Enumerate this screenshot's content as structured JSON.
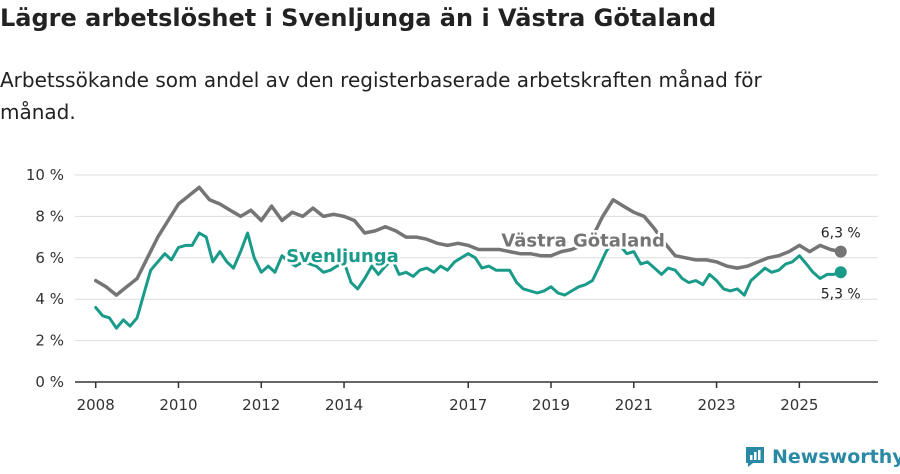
{
  "title": "Lägre arbetslöshet i Svenljunga än i Västra Götaland",
  "subtitle": "Arbetssökande som andel av den registerbaserade arbetskraften månad för månad.",
  "brand": "Newsworthy",
  "colors": {
    "svenljunga": "#1a9b8a",
    "vastra_gotaland": "#757575",
    "grid": "#dddddd",
    "axis": "#333333",
    "brand": "#2a8aa5"
  },
  "chart_data": {
    "type": "line",
    "title": "Lägre arbetslöshet i Svenljunga än i Västra Götaland",
    "xlabel": "",
    "ylabel": "",
    "ylim": [
      0,
      10
    ],
    "xlim": [
      2007.5,
      2026.9
    ],
    "yticks": [
      0,
      2,
      4,
      6,
      8,
      10
    ],
    "ytick_labels": [
      "0 %",
      "2 %",
      "4 %",
      "6 %",
      "8 %",
      "10 %"
    ],
    "xticks": [
      2008,
      2010,
      2012,
      2014,
      2017,
      2019,
      2021,
      2023,
      2025
    ],
    "xtick_labels": [
      "2008",
      "2010",
      "2012",
      "2014",
      "2017",
      "2019",
      "2021",
      "2023",
      "2025"
    ],
    "grid": true,
    "series": [
      {
        "name": "Västra Götaland",
        "label_position": [
          2017.8,
          6.55
        ],
        "end_label": "6,3 %",
        "points": [
          [
            2008.0,
            4.9
          ],
          [
            2008.25,
            4.6
          ],
          [
            2008.5,
            4.2
          ],
          [
            2008.75,
            4.6
          ],
          [
            2009.0,
            5.0
          ],
          [
            2009.25,
            6.0
          ],
          [
            2009.5,
            7.0
          ],
          [
            2009.75,
            7.8
          ],
          [
            2010.0,
            8.6
          ],
          [
            2010.25,
            9.0
          ],
          [
            2010.5,
            9.4
          ],
          [
            2010.75,
            8.8
          ],
          [
            2011.0,
            8.6
          ],
          [
            2011.25,
            8.3
          ],
          [
            2011.5,
            8.0
          ],
          [
            2011.75,
            8.3
          ],
          [
            2012.0,
            7.8
          ],
          [
            2012.25,
            8.5
          ],
          [
            2012.5,
            7.8
          ],
          [
            2012.75,
            8.2
          ],
          [
            2013.0,
            8.0
          ],
          [
            2013.25,
            8.4
          ],
          [
            2013.5,
            8.0
          ],
          [
            2013.75,
            8.1
          ],
          [
            2014.0,
            8.0
          ],
          [
            2014.25,
            7.8
          ],
          [
            2014.5,
            7.2
          ],
          [
            2014.75,
            7.3
          ],
          [
            2015.0,
            7.5
          ],
          [
            2015.25,
            7.3
          ],
          [
            2015.5,
            7.0
          ],
          [
            2015.75,
            7.0
          ],
          [
            2016.0,
            6.9
          ],
          [
            2016.25,
            6.7
          ],
          [
            2016.5,
            6.6
          ],
          [
            2016.75,
            6.7
          ],
          [
            2017.0,
            6.6
          ],
          [
            2017.25,
            6.4
          ],
          [
            2017.5,
            6.4
          ],
          [
            2017.75,
            6.4
          ],
          [
            2018.0,
            6.3
          ],
          [
            2018.25,
            6.2
          ],
          [
            2018.5,
            6.2
          ],
          [
            2018.75,
            6.1
          ],
          [
            2019.0,
            6.1
          ],
          [
            2019.25,
            6.3
          ],
          [
            2019.5,
            6.4
          ],
          [
            2019.75,
            6.6
          ],
          [
            2020.0,
            7.0
          ],
          [
            2020.25,
            8.0
          ],
          [
            2020.5,
            8.8
          ],
          [
            2020.75,
            8.5
          ],
          [
            2021.0,
            8.2
          ],
          [
            2021.25,
            8.0
          ],
          [
            2021.5,
            7.4
          ],
          [
            2021.75,
            6.7
          ],
          [
            2022.0,
            6.1
          ],
          [
            2022.25,
            6.0
          ],
          [
            2022.5,
            5.9
          ],
          [
            2022.75,
            5.9
          ],
          [
            2023.0,
            5.8
          ],
          [
            2023.25,
            5.6
          ],
          [
            2023.5,
            5.5
          ],
          [
            2023.75,
            5.6
          ],
          [
            2024.0,
            5.8
          ],
          [
            2024.25,
            6.0
          ],
          [
            2024.5,
            6.1
          ],
          [
            2024.75,
            6.3
          ],
          [
            2025.0,
            6.6
          ],
          [
            2025.25,
            6.3
          ],
          [
            2025.5,
            6.6
          ],
          [
            2025.75,
            6.4
          ],
          [
            2026.0,
            6.3
          ]
        ]
      },
      {
        "name": "Svenljunga",
        "label_position": [
          2012.6,
          5.8
        ],
        "end_label": "5,3 %",
        "points": [
          [
            2008.0,
            3.6
          ],
          [
            2008.17,
            3.2
          ],
          [
            2008.33,
            3.1
          ],
          [
            2008.5,
            2.6
          ],
          [
            2008.67,
            3.0
          ],
          [
            2008.83,
            2.7
          ],
          [
            2009.0,
            3.1
          ],
          [
            2009.17,
            4.3
          ],
          [
            2009.33,
            5.4
          ],
          [
            2009.5,
            5.8
          ],
          [
            2009.67,
            6.2
          ],
          [
            2009.83,
            5.9
          ],
          [
            2010.0,
            6.5
          ],
          [
            2010.17,
            6.6
          ],
          [
            2010.33,
            6.6
          ],
          [
            2010.5,
            7.2
          ],
          [
            2010.67,
            7.0
          ],
          [
            2010.83,
            5.8
          ],
          [
            2011.0,
            6.3
          ],
          [
            2011.17,
            5.8
          ],
          [
            2011.33,
            5.5
          ],
          [
            2011.5,
            6.3
          ],
          [
            2011.67,
            7.2
          ],
          [
            2011.83,
            6.0
          ],
          [
            2012.0,
            5.3
          ],
          [
            2012.17,
            5.6
          ],
          [
            2012.33,
            5.3
          ],
          [
            2012.5,
            6.1
          ],
          [
            2012.67,
            5.8
          ],
          [
            2012.83,
            5.6
          ],
          [
            2013.0,
            5.8
          ],
          [
            2013.17,
            5.7
          ],
          [
            2013.33,
            5.6
          ],
          [
            2013.5,
            5.3
          ],
          [
            2013.67,
            5.4
          ],
          [
            2013.83,
            5.6
          ],
          [
            2014.0,
            5.8
          ],
          [
            2014.17,
            4.8
          ],
          [
            2014.33,
            4.5
          ],
          [
            2014.5,
            5.0
          ],
          [
            2014.67,
            5.6
          ],
          [
            2014.83,
            5.2
          ],
          [
            2015.0,
            5.6
          ],
          [
            2015.17,
            5.9
          ],
          [
            2015.33,
            5.2
          ],
          [
            2015.5,
            5.3
          ],
          [
            2015.67,
            5.1
          ],
          [
            2015.83,
            5.4
          ],
          [
            2016.0,
            5.5
          ],
          [
            2016.17,
            5.3
          ],
          [
            2016.33,
            5.6
          ],
          [
            2016.5,
            5.4
          ],
          [
            2016.67,
            5.8
          ],
          [
            2016.83,
            6.0
          ],
          [
            2017.0,
            6.2
          ],
          [
            2017.17,
            6.0
          ],
          [
            2017.33,
            5.5
          ],
          [
            2017.5,
            5.6
          ],
          [
            2017.67,
            5.4
          ],
          [
            2017.83,
            5.4
          ],
          [
            2018.0,
            5.4
          ],
          [
            2018.17,
            4.8
          ],
          [
            2018.33,
            4.5
          ],
          [
            2018.5,
            4.4
          ],
          [
            2018.67,
            4.3
          ],
          [
            2018.83,
            4.4
          ],
          [
            2019.0,
            4.6
          ],
          [
            2019.17,
            4.3
          ],
          [
            2019.33,
            4.2
          ],
          [
            2019.5,
            4.4
          ],
          [
            2019.67,
            4.6
          ],
          [
            2019.83,
            4.7
          ],
          [
            2020.0,
            4.9
          ],
          [
            2020.17,
            5.6
          ],
          [
            2020.33,
            6.3
          ],
          [
            2020.5,
            6.8
          ],
          [
            2020.67,
            6.6
          ],
          [
            2020.83,
            6.2
          ],
          [
            2021.0,
            6.3
          ],
          [
            2021.17,
            5.7
          ],
          [
            2021.33,
            5.8
          ],
          [
            2021.5,
            5.5
          ],
          [
            2021.67,
            5.2
          ],
          [
            2021.83,
            5.5
          ],
          [
            2022.0,
            5.4
          ],
          [
            2022.17,
            5.0
          ],
          [
            2022.33,
            4.8
          ],
          [
            2022.5,
            4.9
          ],
          [
            2022.67,
            4.7
          ],
          [
            2022.83,
            5.2
          ],
          [
            2023.0,
            4.9
          ],
          [
            2023.17,
            4.5
          ],
          [
            2023.33,
            4.4
          ],
          [
            2023.5,
            4.5
          ],
          [
            2023.67,
            4.2
          ],
          [
            2023.83,
            4.9
          ],
          [
            2024.0,
            5.2
          ],
          [
            2024.17,
            5.5
          ],
          [
            2024.33,
            5.3
          ],
          [
            2024.5,
            5.4
          ],
          [
            2024.67,
            5.7
          ],
          [
            2024.83,
            5.8
          ],
          [
            2025.0,
            6.1
          ],
          [
            2025.17,
            5.7
          ],
          [
            2025.33,
            5.3
          ],
          [
            2025.5,
            5.0
          ],
          [
            2025.67,
            5.2
          ],
          [
            2025.83,
            5.2
          ],
          [
            2026.0,
            5.3
          ]
        ]
      }
    ]
  }
}
